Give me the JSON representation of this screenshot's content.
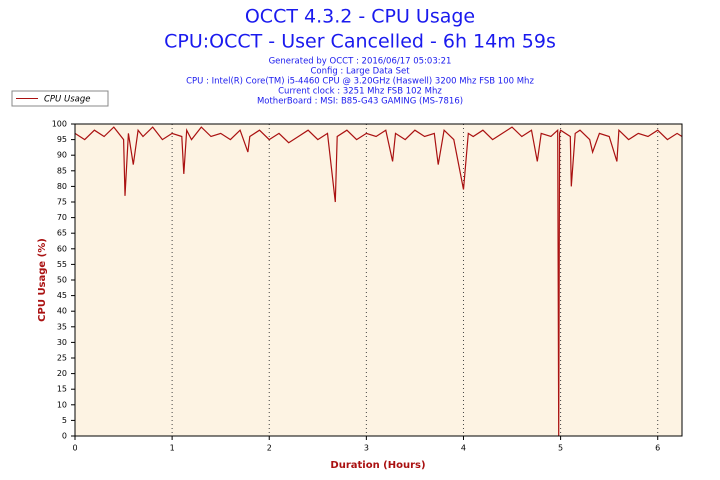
{
  "chart_data": {
    "type": "line",
    "title": "OCCT 4.3.2 - CPU Usage",
    "subtitle": "CPU:OCCT - User Cancelled - 6h 14m 59s",
    "info": [
      "Generated by OCCT : 2016/06/17 05:03:21",
      "Config : Large Data Set",
      "CPU : Intel(R) Core(TM) i5-4460 CPU @ 3.20GHz (Haswell) 3200 Mhz FSB 100 Mhz",
      "Current clock : 3251 Mhz FSB 102 Mhz",
      "MotherBoard : MSI: B85-G43 GAMING (MS-7816)"
    ],
    "x_label": "Duration (Hours)",
    "y_label": "CPU Usage (%)",
    "x": [
      0,
      0.1,
      0.2,
      0.3,
      0.4,
      0.5,
      0.515,
      0.55,
      0.6,
      0.65,
      0.7,
      0.8,
      0.9,
      1.0,
      1.1,
      1.12,
      1.15,
      1.2,
      1.3,
      1.4,
      1.5,
      1.6,
      1.7,
      1.78,
      1.8,
      1.9,
      2.0,
      2.1,
      2.2,
      2.3,
      2.4,
      2.5,
      2.6,
      2.68,
      2.7,
      2.8,
      2.9,
      3.0,
      3.1,
      3.2,
      3.27,
      3.3,
      3.4,
      3.5,
      3.6,
      3.7,
      3.74,
      3.8,
      3.9,
      4.0,
      4.05,
      4.1,
      4.2,
      4.3,
      4.4,
      4.5,
      4.6,
      4.7,
      4.76,
      4.8,
      4.9,
      4.97,
      4.98,
      4.99,
      5.0,
      5.1,
      5.11,
      5.15,
      5.2,
      5.3,
      5.33,
      5.4,
      5.5,
      5.58,
      5.6,
      5.7,
      5.8,
      5.9,
      6.0,
      6.1,
      6.2,
      6.25
    ],
    "series": [
      {
        "name": "CPU Usage",
        "color": "#aa1111",
        "values": [
          97,
          95,
          98,
          96,
          99,
          95,
          77,
          97,
          87,
          98,
          96,
          99,
          95,
          97,
          96,
          84,
          98,
          95,
          99,
          96,
          97,
          95,
          98,
          91,
          96,
          98,
          95,
          97,
          94,
          96,
          98,
          95,
          97,
          75,
          96,
          98,
          95,
          97,
          96,
          98,
          88,
          97,
          95,
          98,
          96,
          97,
          87,
          98,
          95,
          79,
          97,
          96,
          98,
          95,
          97,
          99,
          96,
          98,
          88,
          97,
          96,
          98,
          0,
          97,
          98,
          96,
          80,
          97,
          98,
          95,
          91,
          97,
          96,
          88,
          98,
          95,
          97,
          96,
          98,
          95,
          97,
          96
        ]
      }
    ],
    "xlim": [
      0,
      6.25
    ],
    "ylim": [
      0,
      100
    ],
    "xticks": [
      0,
      1,
      2,
      3,
      4,
      5,
      6
    ],
    "yticks": [
      0,
      5,
      10,
      15,
      20,
      25,
      30,
      35,
      40,
      45,
      50,
      55,
      60,
      65,
      70,
      75,
      80,
      85,
      90,
      95,
      100
    ],
    "grid": true,
    "legend": "top-left"
  }
}
